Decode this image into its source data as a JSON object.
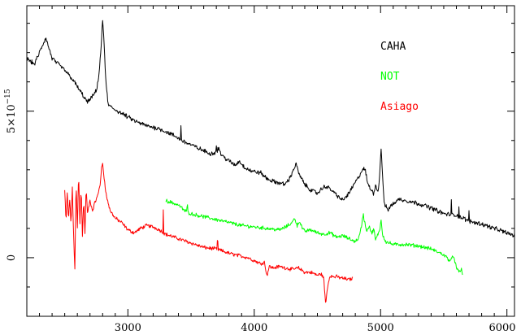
{
  "chart_data": {
    "type": "line",
    "title": "",
    "xlabel": "",
    "ylabel": "",
    "xlim": [
      2200,
      6060
    ],
    "ylim": [
      -2e-15,
      8.6e-15
    ],
    "grid": false,
    "legend_position": "top-right",
    "x_ticks": [
      {
        "value": 3000,
        "label": "3000"
      },
      {
        "value": 4000,
        "label": "4000"
      },
      {
        "value": 5000,
        "label": "5000"
      },
      {
        "value": 6000,
        "label": "6000"
      }
    ],
    "y_ticks": [
      {
        "value": 0,
        "label": "0"
      },
      {
        "value": 5e-15,
        "label": "5×10",
        "superscript": "−15"
      }
    ],
    "series": [
      {
        "name": "CAHA",
        "color": "#000000",
        "noise": 6e-17,
        "x": [
          2200,
          2260,
          2300,
          2350,
          2400,
          2450,
          2500,
          2560,
          2620,
          2680,
          2720,
          2750,
          2770,
          2785,
          2795,
          2800,
          2810,
          2825,
          2845,
          2880,
          2920,
          2960,
          3000,
          3060,
          3150,
          3250,
          3350,
          3450,
          3550,
          3650,
          3700,
          3720,
          3740,
          3800,
          3850,
          3880,
          3920,
          3980,
          4050,
          4100,
          4150,
          4200,
          4240,
          4280,
          4310,
          4330,
          4360,
          4400,
          4450,
          4500,
          4560,
          4600,
          4650,
          4700,
          4750,
          4790,
          4820,
          4850,
          4865,
          4880,
          4900,
          4920,
          4945,
          4960,
          4975,
          4985,
          4995,
          5005,
          5015,
          5030,
          5060,
          5100,
          5150,
          5200,
          5300,
          5400,
          5500,
          5600,
          5700,
          5800,
          5900,
          6000,
          6060
        ],
        "y": [
          6.8e-15,
          6.6e-15,
          7e-15,
          7.5e-15,
          6.8e-15,
          6.6e-15,
          6.4e-15,
          6.1e-15,
          5.7e-15,
          5.3e-15,
          5.5e-15,
          5.7e-15,
          6.2e-15,
          7e-15,
          7.7e-15,
          8.1e-15,
          7.5e-15,
          6e-15,
          5.2e-15,
          5.1e-15,
          5e-15,
          4.9e-15,
          4.8e-15,
          4.65e-15,
          4.5e-15,
          4.4e-15,
          4.2e-15,
          3.95e-15,
          3.75e-15,
          3.55e-15,
          3.6e-15,
          3.75e-15,
          3.5e-15,
          3.3e-15,
          3.15e-15,
          3.3e-15,
          3.1e-15,
          2.95e-15,
          2.9e-15,
          2.7e-15,
          2.6e-15,
          2.55e-15,
          2.5e-15,
          2.7e-15,
          3e-15,
          3.2e-15,
          2.8e-15,
          2.5e-15,
          2.3e-15,
          2.2e-15,
          2.45e-15,
          2.35e-15,
          2.15e-15,
          1.95e-15,
          2.2e-15,
          2.5e-15,
          2.7e-15,
          2.95e-15,
          3.05e-15,
          2.95e-15,
          2.5e-15,
          2.35e-15,
          2.2e-15,
          2.5e-15,
          2.25e-15,
          2.4e-15,
          3e-15,
          3.8e-15,
          2.8e-15,
          1.8e-15,
          1.65e-15,
          1.85e-15,
          2e-15,
          1.95e-15,
          1.85e-15,
          1.7e-15,
          1.5e-15,
          1.45e-15,
          1.25e-15,
          1.15e-15,
          1e-15,
          8.5e-16,
          7.5e-16
        ]
      },
      {
        "name": "NOT",
        "color": "#00ff00",
        "noise": 5e-17,
        "x": [
          3300,
          3400,
          3450,
          3500,
          3600,
          3700,
          3800,
          3900,
          4000,
          4100,
          4200,
          4250,
          4300,
          4320,
          4340,
          4360,
          4380,
          4400,
          4450,
          4500,
          4550,
          4600,
          4650,
          4700,
          4750,
          4800,
          4830,
          4850,
          4862,
          4875,
          4890,
          4910,
          4930,
          4945,
          4960,
          4980,
          4995,
          5005,
          5015,
          5040,
          5100,
          5200,
          5300,
          5400,
          5450,
          5500,
          5550,
          5580,
          5600,
          5620,
          5640,
          5650
        ],
        "y": [
          1.95e-15,
          1.8e-15,
          1.6e-15,
          1.5e-15,
          1.4e-15,
          1.3e-15,
          1.2e-15,
          1.1e-15,
          1.05e-15,
          1e-15,
          9.5e-16,
          1.05e-15,
          1.2e-15,
          1.35e-15,
          1.1e-15,
          1.25e-15,
          1e-15,
          9e-16,
          9.5e-16,
          8.5e-16,
          8e-16,
          8.5e-16,
          7e-16,
          7.5e-16,
          6.5e-16,
          5.5e-16,
          7e-16,
          1.1e-15,
          1.5e-15,
          1.2e-15,
          9e-16,
          1.1e-15,
          8e-16,
          1e-15,
          6e-16,
          8e-16,
          1e-15,
          1.3e-15,
          8e-16,
          5.5e-16,
          4.5e-16,
          4.5e-16,
          4e-16,
          3e-16,
          2e-16,
          1e-16,
          -1e-16,
          5e-17,
          -3.5e-16,
          -5e-16,
          -4e-16,
          -6e-16
        ]
      },
      {
        "name": "Asiago",
        "color": "#ff0000",
        "noise": 5e-17,
        "x": [
          2500,
          2510,
          2520,
          2530,
          2540,
          2550,
          2560,
          2570,
          2580,
          2590,
          2600,
          2610,
          2620,
          2630,
          2640,
          2650,
          2660,
          2670,
          2680,
          2700,
          2720,
          2740,
          2760,
          2780,
          2790,
          2800,
          2810,
          2830,
          2860,
          2900,
          2950,
          3000,
          3050,
          3100,
          3150,
          3200,
          3250,
          3300,
          3400,
          3500,
          3600,
          3700,
          3800,
          3900,
          3950,
          4000,
          4050,
          4080,
          4100,
          4120,
          4150,
          4200,
          4300,
          4350,
          4400,
          4450,
          4500,
          4530,
          4550,
          4565,
          4580,
          4600,
          4620,
          4650,
          4700,
          4750,
          4780
        ],
        "y": [
          2.3e-15,
          1.2e-15,
          2.2e-15,
          1.3e-15,
          2e-15,
          1.1e-15,
          2.4e-15,
          8e-16,
          -4e-16,
          2.6e-15,
          1e-15,
          2.9e-15,
          1.2e-15,
          2.4e-15,
          7e-16,
          2e-15,
          8e-16,
          2.4e-15,
          1.5e-15,
          1.95e-15,
          1.6e-15,
          1.9e-15,
          2.1e-15,
          2.5e-15,
          3e-15,
          3.2e-15,
          2.8e-15,
          2.1e-15,
          1.6e-15,
          1.35e-15,
          1.2e-15,
          9.5e-16,
          8.5e-16,
          1e-15,
          1.1e-15,
          1.05e-15,
          9.5e-16,
          8e-16,
          6.5e-16,
          5e-16,
          3.5e-16,
          3e-16,
          1.5e-16,
          5e-17,
          0.0,
          -1e-16,
          -2e-16,
          -1.5e-16,
          -6e-16,
          -3e-16,
          -3.5e-16,
          -3e-16,
          -4e-16,
          -3.5e-16,
          -5e-16,
          -5e-16,
          -6e-16,
          -5.5e-16,
          -7e-16,
          -1.6e-15,
          -1e-15,
          -6e-16,
          -6.5e-16,
          -6.5e-16,
          -7e-16,
          -7.5e-16,
          -7e-16
        ]
      }
    ],
    "spike_features": [
      {
        "series": 0,
        "x": 3420,
        "dy": 5e-16
      },
      {
        "series": 0,
        "x": 3700,
        "dy": 3e-16
      },
      {
        "series": 0,
        "x": 5560,
        "dy": 4.5e-16
      },
      {
        "series": 0,
        "x": 5620,
        "dy": 3.5e-16
      },
      {
        "series": 0,
        "x": 5700,
        "dy": 3e-16
      },
      {
        "series": 2,
        "x": 3280,
        "dy": 8e-16
      },
      {
        "series": 2,
        "x": 3710,
        "dy": 2.5e-16
      },
      {
        "series": 1,
        "x": 3470,
        "dy": 2e-16
      }
    ]
  }
}
